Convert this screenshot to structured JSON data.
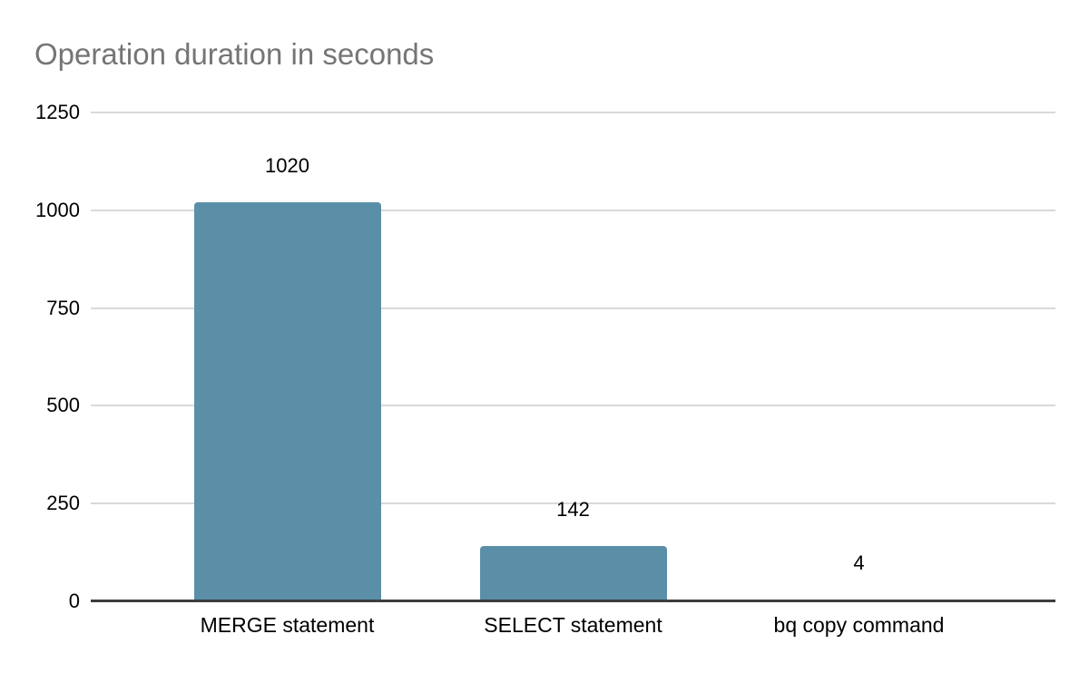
{
  "chart_data": {
    "type": "bar",
    "title": "Operation duration in seconds",
    "categories": [
      "MERGE statement",
      "SELECT statement",
      "bq copy command"
    ],
    "values": [
      1020,
      142,
      4
    ],
    "value_labels": [
      "1020",
      "142",
      "4"
    ],
    "xlabel": "",
    "ylabel": "",
    "y_ticks": [
      0,
      250,
      500,
      750,
      1000,
      1250
    ],
    "ylim": [
      0,
      1250
    ],
    "grid": true,
    "legend_position": "none",
    "colors": {
      "bar": "#5b8fa8",
      "gridline": "#d9d9d9",
      "axis": "#3c3c3c",
      "title": "#757575",
      "text": "#000000"
    }
  }
}
